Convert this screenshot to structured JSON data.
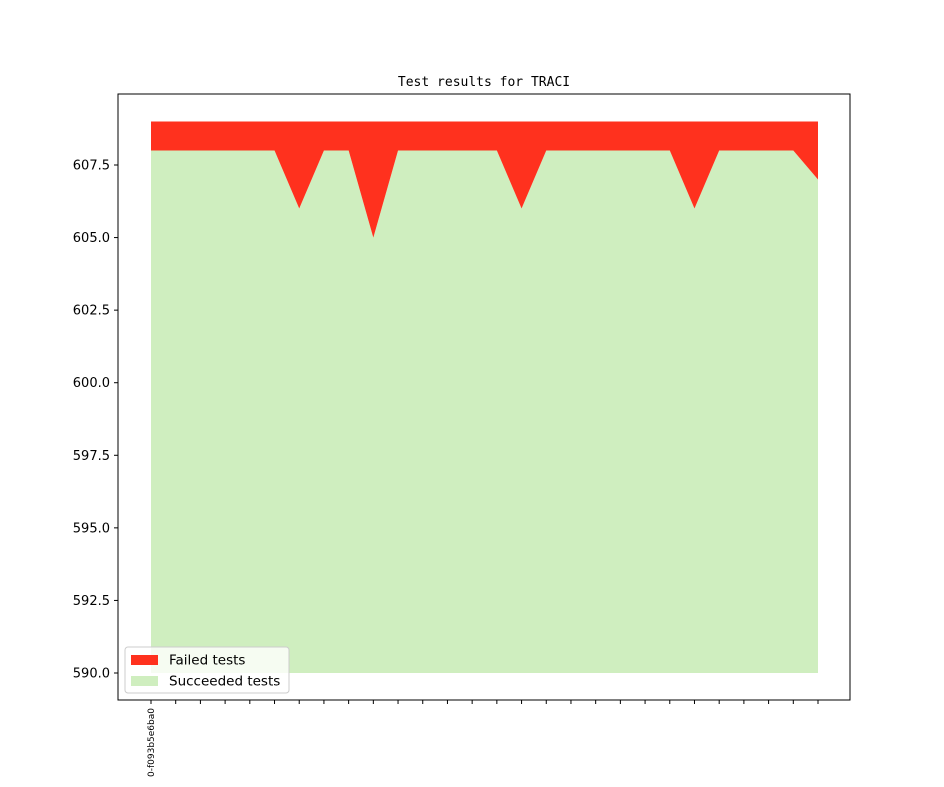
{
  "chart_data": {
    "type": "area",
    "title": "Test results for TRACI",
    "xlabel": "",
    "ylabel": "",
    "x_count": 28,
    "x_tick_labels": [
      "0-f093b5e6ba0"
    ],
    "ylim": [
      589.2,
      610.0
    ],
    "y_ticks": [
      590.0,
      592.5,
      595.0,
      597.5,
      600.0,
      602.5,
      605.0,
      607.5
    ],
    "y_tick_labels": [
      "590.0",
      "592.5",
      "595.0",
      "597.5",
      "600.0",
      "602.5",
      "605.0",
      "607.5"
    ],
    "stack_base": 590.0,
    "grid": false,
    "legend": "lower-left",
    "series": [
      {
        "name": "Succeeded tests",
        "color": "#cfeebf",
        "values": [
          608,
          608,
          608,
          608,
          608,
          608,
          606,
          608,
          608,
          605,
          608,
          608,
          608,
          608,
          608,
          606,
          608,
          608,
          608,
          608,
          608,
          608,
          606,
          608,
          608,
          608,
          608,
          607
        ]
      },
      {
        "name": "Failed tests",
        "color": "#ff311e",
        "values": [
          1,
          1,
          1,
          1,
          1,
          1,
          3,
          1,
          1,
          4,
          1,
          1,
          1,
          1,
          1,
          3,
          1,
          1,
          1,
          1,
          1,
          1,
          3,
          1,
          1,
          1,
          1,
          2
        ]
      }
    ],
    "legend_order": [
      "Failed tests",
      "Succeeded tests"
    ]
  }
}
